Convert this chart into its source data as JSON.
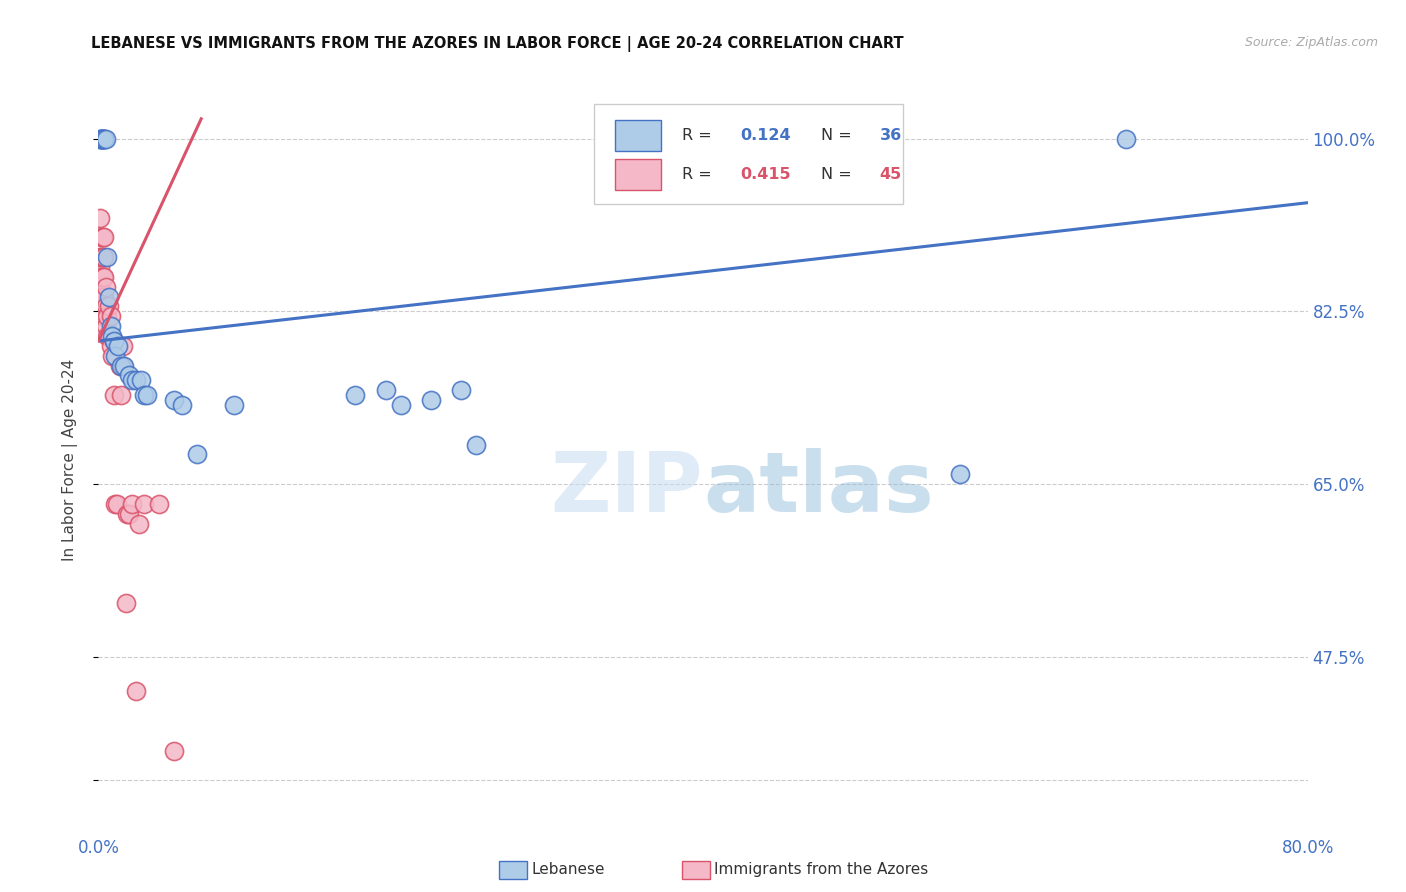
{
  "title": "LEBANESE VS IMMIGRANTS FROM THE AZORES IN LABOR FORCE | AGE 20-24 CORRELATION CHART",
  "source": "Source: ZipAtlas.com",
  "ylabel": "In Labor Force | Age 20-24",
  "xmin": 0.0,
  "xmax": 0.8,
  "ymin": 0.3,
  "ymax": 1.05,
  "x_ticks": [
    0.0,
    0.1,
    0.2,
    0.3,
    0.4,
    0.5,
    0.6,
    0.7,
    0.8
  ],
  "x_tick_labels": [
    "0.0%",
    "",
    "",
    "",
    "",
    "",
    "",
    "",
    "80.0%"
  ],
  "y_ticks": [
    0.35,
    0.475,
    0.65,
    0.825,
    1.0
  ],
  "y_tick_labels": [
    "",
    "47.5%",
    "65.0%",
    "82.5%",
    "100.0%"
  ],
  "watermark_zip": "ZIP",
  "watermark_atlas": "atlas",
  "legend_r1": "0.124",
  "legend_n1": "36",
  "legend_r2": "0.415",
  "legend_n2": "45",
  "color_blue_fill": "#AECCE8",
  "color_pink_fill": "#F4B8C8",
  "color_blue": "#4472C4",
  "color_pink": "#D9536A",
  "background_color": "#FFFFFF",
  "blue_x": [
    0.001,
    0.0015,
    0.002,
    0.0025,
    0.003,
    0.003,
    0.004,
    0.004,
    0.005,
    0.006,
    0.007,
    0.008,
    0.009,
    0.01,
    0.011,
    0.013,
    0.015,
    0.017,
    0.02,
    0.022,
    0.025,
    0.028,
    0.03,
    0.032,
    0.05,
    0.055,
    0.065,
    0.09,
    0.17,
    0.19,
    0.2,
    0.22,
    0.24,
    0.25,
    0.57,
    0.68
  ],
  "blue_y": [
    1.0,
    1.0,
    1.0,
    1.0,
    1.0,
    1.0,
    1.0,
    1.0,
    1.0,
    0.88,
    0.84,
    0.81,
    0.8,
    0.795,
    0.78,
    0.79,
    0.77,
    0.77,
    0.76,
    0.755,
    0.755,
    0.755,
    0.74,
    0.74,
    0.735,
    0.73,
    0.68,
    0.73,
    0.74,
    0.745,
    0.73,
    0.735,
    0.745,
    0.69,
    0.66,
    1.0
  ],
  "pink_x": [
    0.001,
    0.001,
    0.001,
    0.001,
    0.002,
    0.002,
    0.002,
    0.002,
    0.003,
    0.003,
    0.003,
    0.003,
    0.003,
    0.004,
    0.004,
    0.004,
    0.004,
    0.004,
    0.005,
    0.005,
    0.005,
    0.006,
    0.006,
    0.007,
    0.007,
    0.008,
    0.008,
    0.009,
    0.01,
    0.01,
    0.011,
    0.012,
    0.014,
    0.015,
    0.016,
    0.016,
    0.018,
    0.019,
    0.02,
    0.022,
    0.025,
    0.027,
    0.03,
    0.04,
    0.05
  ],
  "pink_y": [
    0.85,
    0.87,
    0.88,
    0.92,
    0.84,
    0.86,
    0.88,
    0.9,
    0.82,
    0.84,
    0.86,
    0.88,
    0.9,
    0.82,
    0.84,
    0.86,
    0.88,
    0.9,
    0.81,
    0.83,
    0.85,
    0.8,
    0.82,
    0.8,
    0.83,
    0.79,
    0.82,
    0.78,
    0.795,
    0.74,
    0.63,
    0.63,
    0.77,
    0.74,
    0.77,
    0.79,
    0.53,
    0.62,
    0.62,
    0.63,
    0.44,
    0.61,
    0.63,
    0.63,
    0.38
  ],
  "blue_trend_x": [
    0.0,
    0.8
  ],
  "blue_trend_y": [
    0.795,
    0.935
  ],
  "pink_trend_x": [
    0.0,
    0.068
  ],
  "pink_trend_y": [
    0.795,
    1.02
  ]
}
